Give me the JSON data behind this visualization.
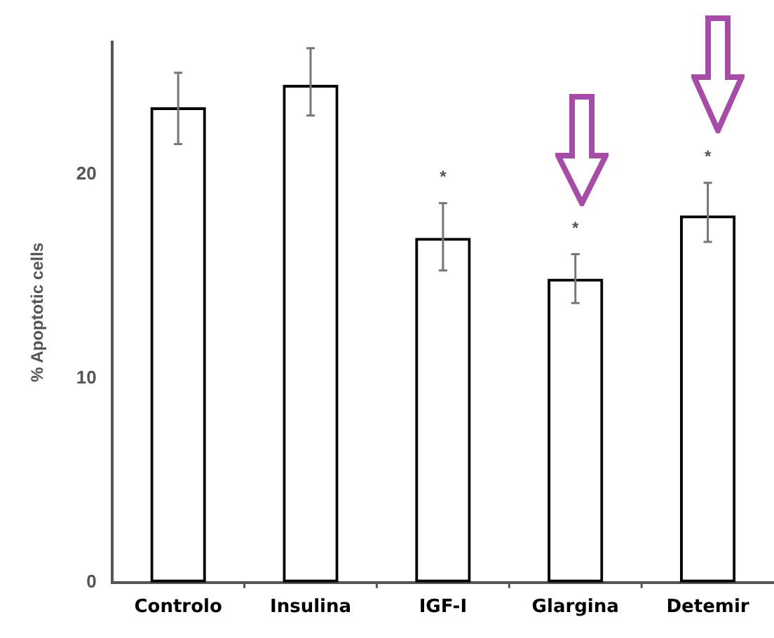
{
  "chart_data": {
    "type": "bar",
    "ylabel": "% Apoptotic cells",
    "categories": [
      "Controlo",
      "Insulina",
      "IGF-I",
      "Glargina",
      "Detemir"
    ],
    "values": [
      23.3,
      24.4,
      16.9,
      14.9,
      18.0
    ],
    "errors": [
      [
        21.5,
        25.0
      ],
      [
        22.9,
        26.2
      ],
      [
        15.3,
        18.6
      ],
      [
        13.7,
        16.1
      ],
      [
        16.7,
        19.6
      ]
    ],
    "color": "#000000",
    "annotations": [
      "*",
      "*",
      "*"
    ],
    "ylim": [
      0,
      26.5
    ],
    "yticks": [
      0,
      10,
      20
    ],
    "grid": false,
    "legend": false
  }
}
